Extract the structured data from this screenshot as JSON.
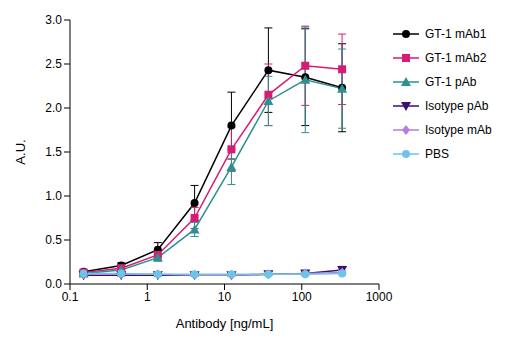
{
  "chart_data": {
    "type": "line",
    "x_label": "Antibody [ng/mL]",
    "y_label": "A.U.",
    "log": "x",
    "grid": false,
    "legend": "right",
    "xlim": [
      0.1,
      1000
    ],
    "xticks": [
      0.1,
      1,
      10,
      100,
      1000
    ],
    "ylim": [
      0,
      3
    ],
    "yticks": [
      {
        "value": 0,
        "label": "0.0"
      },
      {
        "value": 0.5,
        "label": "0.5"
      },
      {
        "value": 1,
        "label": "1.0"
      },
      {
        "value": 1.5,
        "label": "1.5"
      },
      {
        "value": 2,
        "label": "2.0"
      },
      {
        "value": 2.5,
        "label": "2.5"
      },
      {
        "value": 3,
        "label": "3.0"
      }
    ],
    "x": [
      0.15,
      0.46,
      1.37,
      4.1,
      12.3,
      37,
      111,
      333
    ],
    "series": [
      {
        "name": "GT-1 mAb1",
        "color": "#000000",
        "marker": "circle",
        "values": [
          0.14,
          0.21,
          0.39,
          0.92,
          1.8,
          2.43,
          2.35,
          2.23
        ],
        "errors": [
          0.02,
          0.03,
          0.08,
          0.2,
          0.38,
          0.48,
          0.55,
          0.5
        ]
      },
      {
        "name": "GT-1 mAb2",
        "color": "#d81b75",
        "marker": "square",
        "values": [
          0.13,
          0.18,
          0.33,
          0.75,
          1.53,
          2.15,
          2.48,
          2.44
        ],
        "errors": [
          0.02,
          0.02,
          0.05,
          0.12,
          0.25,
          0.35,
          0.45,
          0.4
        ]
      },
      {
        "name": "GT-1 pAb",
        "color": "#2e9090",
        "marker": "triangle",
        "values": [
          0.12,
          0.16,
          0.3,
          0.62,
          1.33,
          2.08,
          2.32,
          2.22
        ],
        "errors": [
          0.02,
          0.02,
          0.04,
          0.08,
          0.2,
          0.28,
          0.6,
          0.45
        ]
      },
      {
        "name": "Isotype pAb",
        "color": "#3b0f6f",
        "marker": "triangle-down",
        "values": [
          0.1,
          0.1,
          0.1,
          0.1,
          0.1,
          0.11,
          0.12,
          0.16
        ],
        "errors": [
          0.01,
          0.01,
          0.01,
          0.01,
          0.01,
          0.01,
          0.02,
          0.04
        ]
      },
      {
        "name": "Isotype mAb",
        "color": "#b57edc",
        "marker": "diamond",
        "values": [
          0.11,
          0.11,
          0.11,
          0.1,
          0.1,
          0.11,
          0.12,
          0.13
        ],
        "errors": [
          0.01,
          0.01,
          0.01,
          0.01,
          0.01,
          0.01,
          0.01,
          0.02
        ]
      },
      {
        "name": "PBS",
        "color": "#6cc5e9",
        "marker": "circle",
        "values": [
          0.12,
          0.12,
          0.11,
          0.11,
          0.11,
          0.11,
          0.11,
          0.12
        ],
        "errors": [
          0.01,
          0.01,
          0.01,
          0.01,
          0.01,
          0.01,
          0.01,
          0.01
        ]
      }
    ]
  }
}
